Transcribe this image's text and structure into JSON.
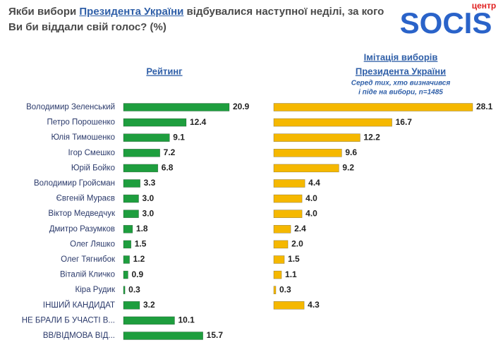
{
  "title": [
    "Якби вибори ",
    "Президента України",
    " відбувалися наступної неділі, за кого Ви би віддали свій голос? (%)"
  ],
  "logo": {
    "small": "центр",
    "main": "SOCIS"
  },
  "chart_data": [
    {
      "type": "hbar",
      "title": [
        "Рейтинг"
      ],
      "color": "#1e9e3e",
      "categories": [
        "Володимир Зеленський",
        "Петро Порошенко",
        "Юлія Тимошенко",
        "Ігор Смешко",
        "Юрій Бойко",
        "Володимир Гройсман",
        "Євгеній Мураєв",
        "Віктор Медведчук",
        "Дмитро Разумков",
        "Олег Ляшко",
        "Олег Тягнибок",
        "Віталій Кличко",
        "Кіра Рудик",
        "ІНШИЙ КАНДИДАТ",
        "НЕ БРАЛИ Б УЧАСТІ В...",
        "ВВ/ВІДМОВА ВІД..."
      ],
      "values": [
        20.9,
        12.4,
        9.1,
        7.2,
        6.8,
        3.3,
        3.0,
        3.0,
        1.8,
        1.5,
        1.2,
        0.9,
        0.3,
        3.2,
        10.1,
        15.7
      ],
      "value_labels": [
        "20.9",
        "12.4",
        "9.1",
        "7.2",
        "6.8",
        "3.3",
        "3.0",
        "3.0",
        "1.8",
        "1.5",
        "1.2",
        "0.9",
        "0.3",
        "3.2",
        "10.1",
        "15.7"
      ]
    },
    {
      "type": "hbar",
      "title": [
        "Імітація виборів",
        "Президента України"
      ],
      "subtitle": [
        "Серед тих, хто визначився",
        "і піде на вибори, n=1485"
      ],
      "color": "#f5b800",
      "values": [
        28.1,
        16.7,
        12.2,
        9.6,
        9.2,
        4.4,
        4.0,
        4.0,
        2.4,
        2.0,
        1.5,
        1.1,
        0.3,
        4.3
      ],
      "value_labels": [
        "28.1",
        "16.7",
        "12.2",
        "9.6",
        "9.2",
        "4.4",
        "4.0",
        "4.0",
        "2.4",
        "2.0",
        "1.5",
        "1.1",
        "0.3",
        "4.3"
      ]
    }
  ]
}
